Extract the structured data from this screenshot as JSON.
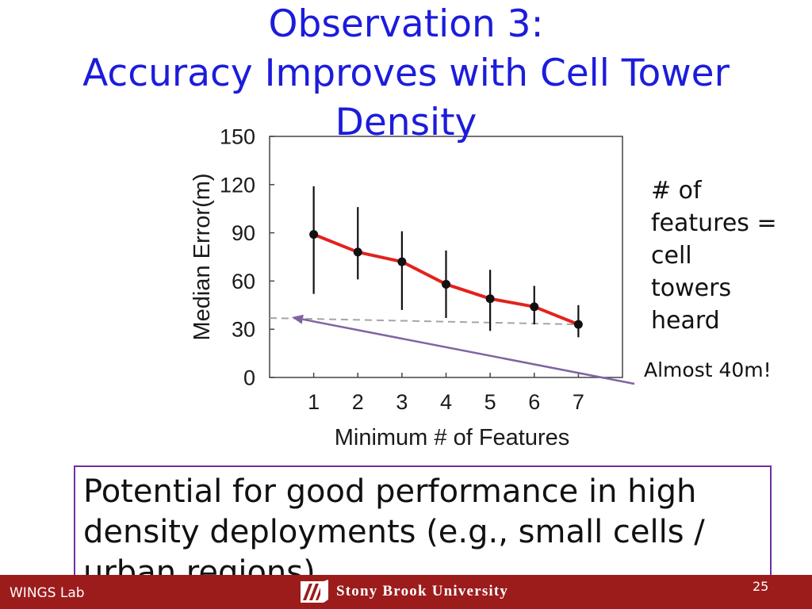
{
  "slide": {
    "title_lines": [
      "Observation 3:",
      "Accuracy Improves with Cell Tower Density"
    ],
    "title_color": "#1c1cdc",
    "annotation": {
      "lines": [
        "# of",
        "features =",
        "cell",
        "towers",
        "heard"
      ],
      "callout": "Almost 40m!",
      "arrow_color": "#8064a2"
    },
    "takeaway": {
      "text": "Potential for good performance in high density deployments (e.g., small cells / urban regions)",
      "border_color": "#7030a0"
    }
  },
  "chart_data": {
    "type": "line",
    "title": "",
    "xlabel": "Minimum # of Features",
    "ylabel": "Median Error(m)",
    "x": [
      1,
      2,
      3,
      4,
      5,
      6,
      7
    ],
    "xticks": [
      1,
      2,
      3,
      4,
      5,
      6,
      7
    ],
    "yticks": [
      0,
      30,
      60,
      90,
      120,
      150
    ],
    "xlim": [
      0,
      8
    ],
    "ylim": [
      0,
      150
    ],
    "grid": false,
    "legend": "none",
    "series": [
      {
        "values": [
          89,
          78,
          72,
          58,
          49,
          44,
          33
        ],
        "error_low": [
          52,
          61,
          42,
          37,
          29,
          33,
          25
        ],
        "error_high": [
          119,
          106,
          91,
          79,
          67,
          57,
          45
        ],
        "line_color": "#e3221e",
        "marker_color": "#111111"
      }
    ],
    "reference_line": {
      "x": [
        0,
        7
      ],
      "y": [
        37,
        33
      ],
      "style": "dashed",
      "color": "#a5a5a5"
    }
  },
  "footer": {
    "lab": "WINGS Lab",
    "logo_icon": "stony-brook-logo-icon",
    "university": "Stony Brook University",
    "page_number": "25",
    "background_color": "#9c1c1c"
  }
}
